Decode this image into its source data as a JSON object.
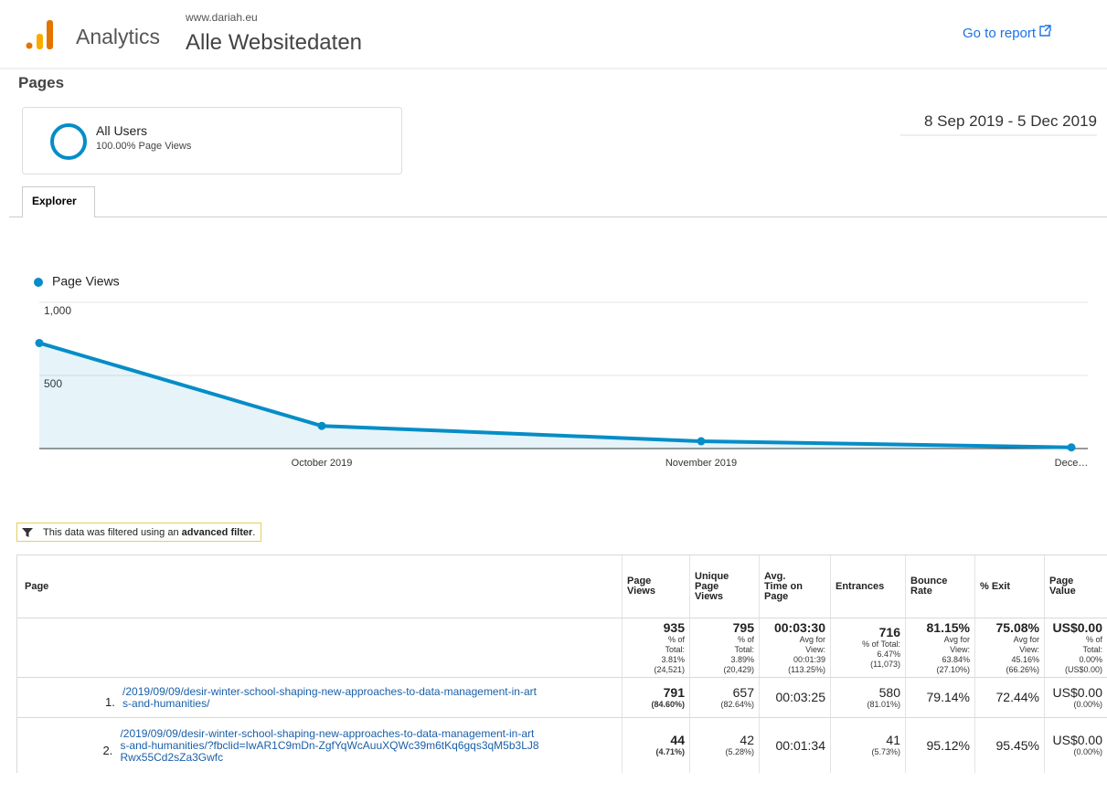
{
  "header": {
    "product": "Analytics",
    "account": "www.dariah.eu",
    "property": "Alle Websitedaten",
    "link": "Go to report"
  },
  "report_title": "Pages",
  "segment": {
    "name": "All Users",
    "detail": "100.00% Page Views"
  },
  "date_range": "8 Sep 2019 - 5 Dec 2019",
  "tab": "Explorer",
  "chart_data": {
    "type": "line",
    "categories": [
      null,
      "October 2019",
      "November 2019",
      "Dece…"
    ],
    "series": [
      {
        "name": "Page Views",
        "color": "#058dc7",
        "values": [
          722,
          155,
          50,
          8
        ]
      }
    ],
    "ylim": [
      0,
      1000
    ],
    "yticks": [
      500,
      {
        "value": 1000,
        "label": "1,000"
      }
    ],
    "grid": true
  },
  "filter_note": {
    "prefix": "This data was filtered using an ",
    "bold": "advanced filter",
    "suffix": "."
  },
  "table": {
    "columns": [
      [
        "Page"
      ],
      [
        "Page",
        "Views"
      ],
      [
        "Unique",
        "Page",
        "Views"
      ],
      [
        "Avg.",
        "Time on",
        "Page"
      ],
      [
        "Entrances"
      ],
      [
        "Bounce",
        "Rate"
      ],
      [
        "% Exit"
      ],
      [
        "Page",
        "Value"
      ]
    ],
    "totals": [
      {
        "main": "935",
        "lines": [
          "% of",
          "Total:",
          "3.81%",
          "(24,521)"
        ]
      },
      {
        "main": "795",
        "lines": [
          "% of",
          "Total:",
          "3.89%",
          "(20,429)"
        ]
      },
      {
        "main": "00:03:30",
        "lines": [
          "Avg for",
          "View:",
          "00:01:39",
          "(113.25%)"
        ]
      },
      {
        "main": "716",
        "lines": [
          "% of Total:",
          "6.47%",
          "(11,073)"
        ]
      },
      {
        "main": "81.15%",
        "lines": [
          "Avg for",
          "View:",
          "63.84%",
          "(27.10%)"
        ]
      },
      {
        "main": "75.08%",
        "lines": [
          "Avg for",
          "View:",
          "45.16%",
          "(66.26%)"
        ]
      },
      {
        "main": "US$0.00",
        "lines": [
          "% of",
          "Total:",
          "0.00%",
          "(US$0.00)"
        ]
      }
    ],
    "rows": [
      {
        "rank": "1.",
        "page": [
          "/2019/09/09/desir-winter-school-shaping-new-approaches-to-data-management-in-art",
          "s-and-humanities/"
        ],
        "cells": [
          {
            "main": "791",
            "sub": "(84.60%)"
          },
          {
            "main": "657",
            "sub": "(82.64%)"
          },
          {
            "main": "00:03:25"
          },
          {
            "main": "580",
            "sub": "(81.01%)"
          },
          {
            "main": "79.14%"
          },
          {
            "main": "72.44%"
          },
          {
            "main": "US$0.00",
            "sub": "(0.00%)"
          }
        ]
      },
      {
        "rank": "2.",
        "page": [
          "/2019/09/09/desir-winter-school-shaping-new-approaches-to-data-management-in-art",
          "s-and-humanities/?fbclid=IwAR1C9mDn-ZgfYqWcAuuXQWc39m6tKq6gqs3qM5b3LJ8",
          "Rwx55Cd2sZa3Gwfc"
        ],
        "cells": [
          {
            "main": "44",
            "sub": "(4.71%)"
          },
          {
            "main": "42",
            "sub": "(5.28%)"
          },
          {
            "main": "00:01:34"
          },
          {
            "main": "41",
            "sub": "(5.73%)"
          },
          {
            "main": "95.12%"
          },
          {
            "main": "95.45%"
          },
          {
            "main": "US$0.00",
            "sub": "(0.00%)"
          }
        ]
      }
    ]
  }
}
